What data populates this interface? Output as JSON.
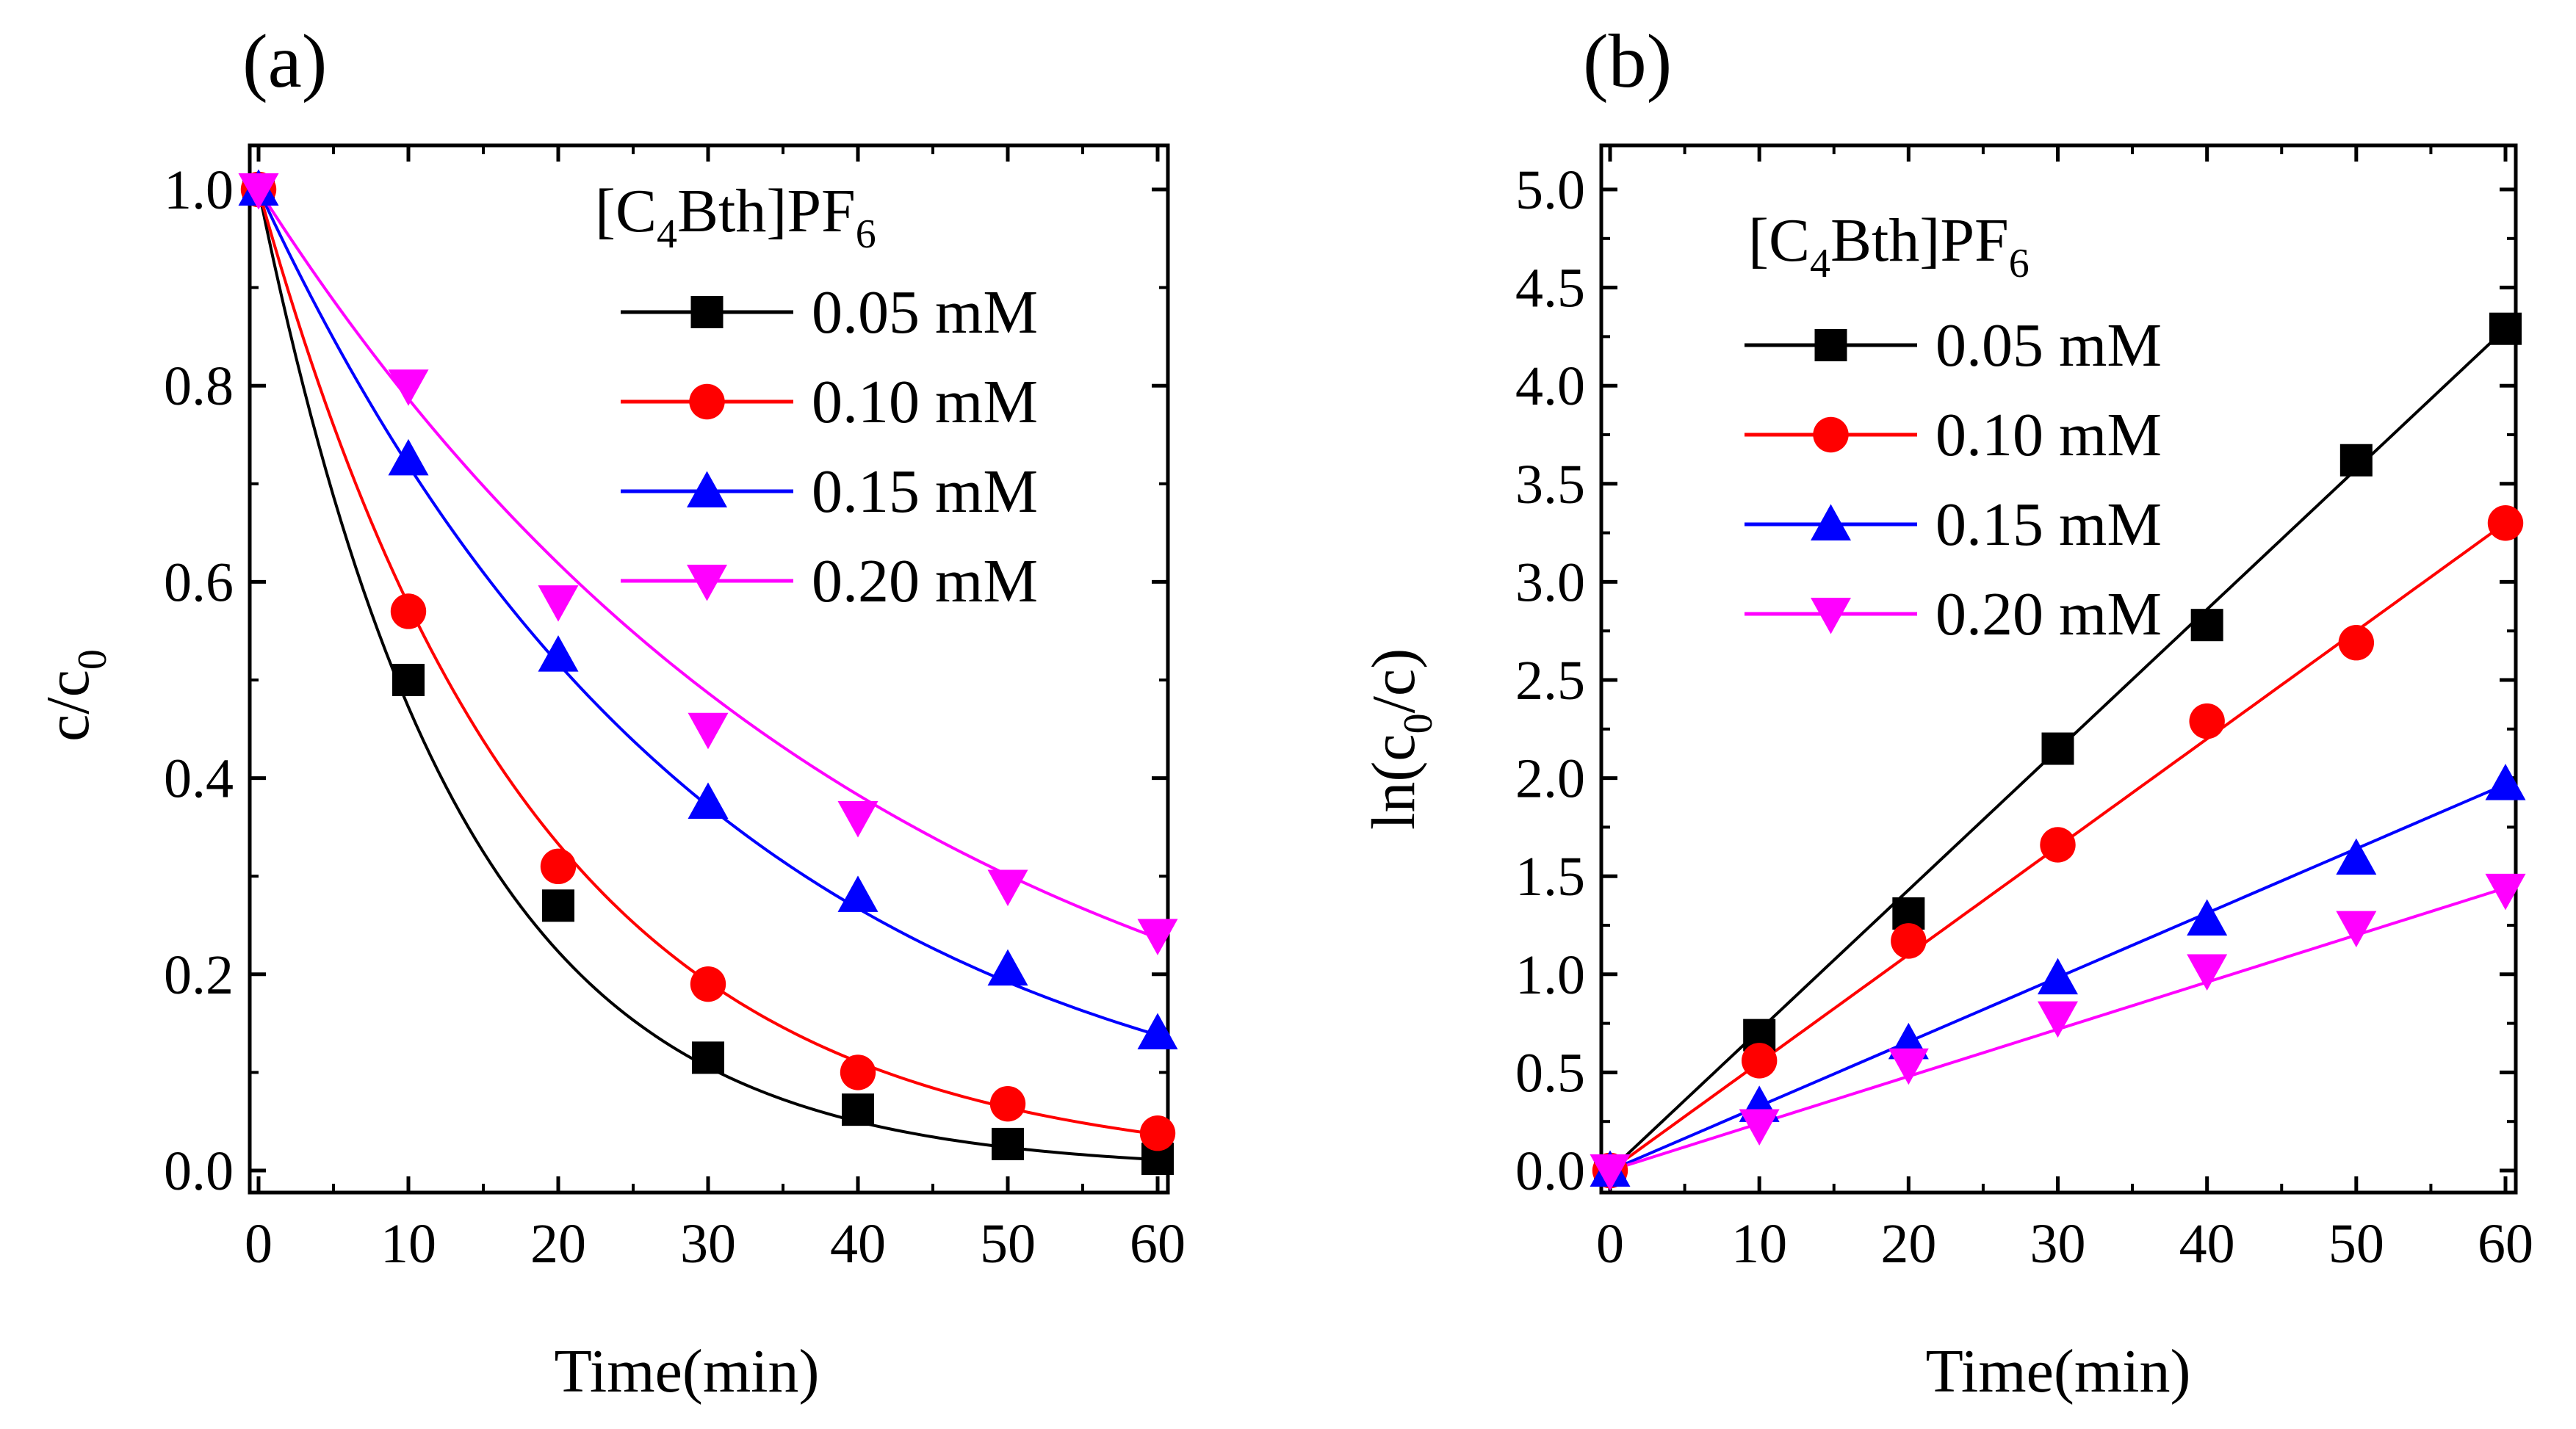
{
  "chart_data": [
    {
      "type": "scatter",
      "panel_label": "(a)",
      "title": "",
      "xlabel": "Time(min)",
      "ylabel": "c/c",
      "ylabel_sub": "0",
      "xlim": [
        0,
        60
      ],
      "ylim": [
        0.0,
        1.0
      ],
      "xticks": [
        "0",
        "10",
        "20",
        "30",
        "40",
        "50",
        "60"
      ],
      "yticks": [
        "0.0",
        "0.2",
        "0.4",
        "0.6",
        "0.8",
        "1.0"
      ],
      "legend_title": "[C",
      "legend_title_sub1": "4",
      "legend_title_mid": "Bth]PF",
      "legend_title_sub2": "6",
      "legend_position": "top-right",
      "fit": "exponential",
      "x": [
        0,
        10,
        20,
        30,
        40,
        50,
        60
      ],
      "series": [
        {
          "name": "0.05 mM",
          "color": "#000000",
          "marker": "square",
          "values": [
            1.0,
            0.5,
            0.27,
            0.115,
            0.062,
            0.027,
            0.012
          ],
          "k": 0.075
        },
        {
          "name": "0.10 mM",
          "color": "#ff0000",
          "marker": "circle",
          "values": [
            1.0,
            0.57,
            0.31,
            0.19,
            0.1,
            0.068,
            0.038
          ],
          "k": 0.055
        },
        {
          "name": "0.15 mM",
          "color": "#0000ff",
          "marker": "triangle-up",
          "values": [
            1.0,
            0.725,
            0.525,
            0.375,
            0.28,
            0.205,
            0.14
          ],
          "k": 0.033
        },
        {
          "name": "0.20 mM",
          "color": "#ff00ff",
          "marker": "triangle-down",
          "values": [
            1.0,
            0.8,
            0.58,
            0.45,
            0.36,
            0.29,
            0.24
          ],
          "k": 0.024
        }
      ]
    },
    {
      "type": "scatter",
      "panel_label": "(b)",
      "title": "",
      "xlabel": "Time(min)",
      "ylabel": "ln(c",
      "ylabel_sub": "0",
      "ylabel_tail": "/c)",
      "xlim": [
        0,
        60
      ],
      "ylim": [
        0.0,
        5.0
      ],
      "xticks": [
        "0",
        "10",
        "20",
        "30",
        "40",
        "50",
        "60"
      ],
      "yticks": [
        "0.0",
        "0.5",
        "1.0",
        "1.5",
        "2.0",
        "2.5",
        "3.0",
        "3.5",
        "4.0",
        "4.5",
        "5.0"
      ],
      "legend_title": "[C",
      "legend_title_sub1": "4",
      "legend_title_mid": "Bth]PF",
      "legend_title_sub2": "6",
      "legend_position": "top-left",
      "fit": "linear",
      "x": [
        0,
        10,
        20,
        30,
        40,
        50,
        60
      ],
      "series": [
        {
          "name": "0.05 mM",
          "color": "#000000",
          "marker": "square",
          "values": [
            0.0,
            0.69,
            1.31,
            2.15,
            2.78,
            3.62,
            4.29
          ],
          "slope": 0.0715
        },
        {
          "name": "0.10 mM",
          "color": "#ff0000",
          "marker": "circle",
          "values": [
            0.0,
            0.56,
            1.17,
            1.66,
            2.29,
            2.69,
            3.3
          ],
          "slope": 0.055
        },
        {
          "name": "0.15 mM",
          "color": "#0000ff",
          "marker": "triangle-up",
          "values": [
            0.0,
            0.33,
            0.65,
            0.98,
            1.28,
            1.59,
            1.97
          ],
          "slope": 0.0328
        },
        {
          "name": "0.20 mM",
          "color": "#ff00ff",
          "marker": "triangle-down",
          "values": [
            0.0,
            0.23,
            0.54,
            0.78,
            1.02,
            1.24,
            1.43
          ],
          "slope": 0.024
        }
      ]
    }
  ]
}
